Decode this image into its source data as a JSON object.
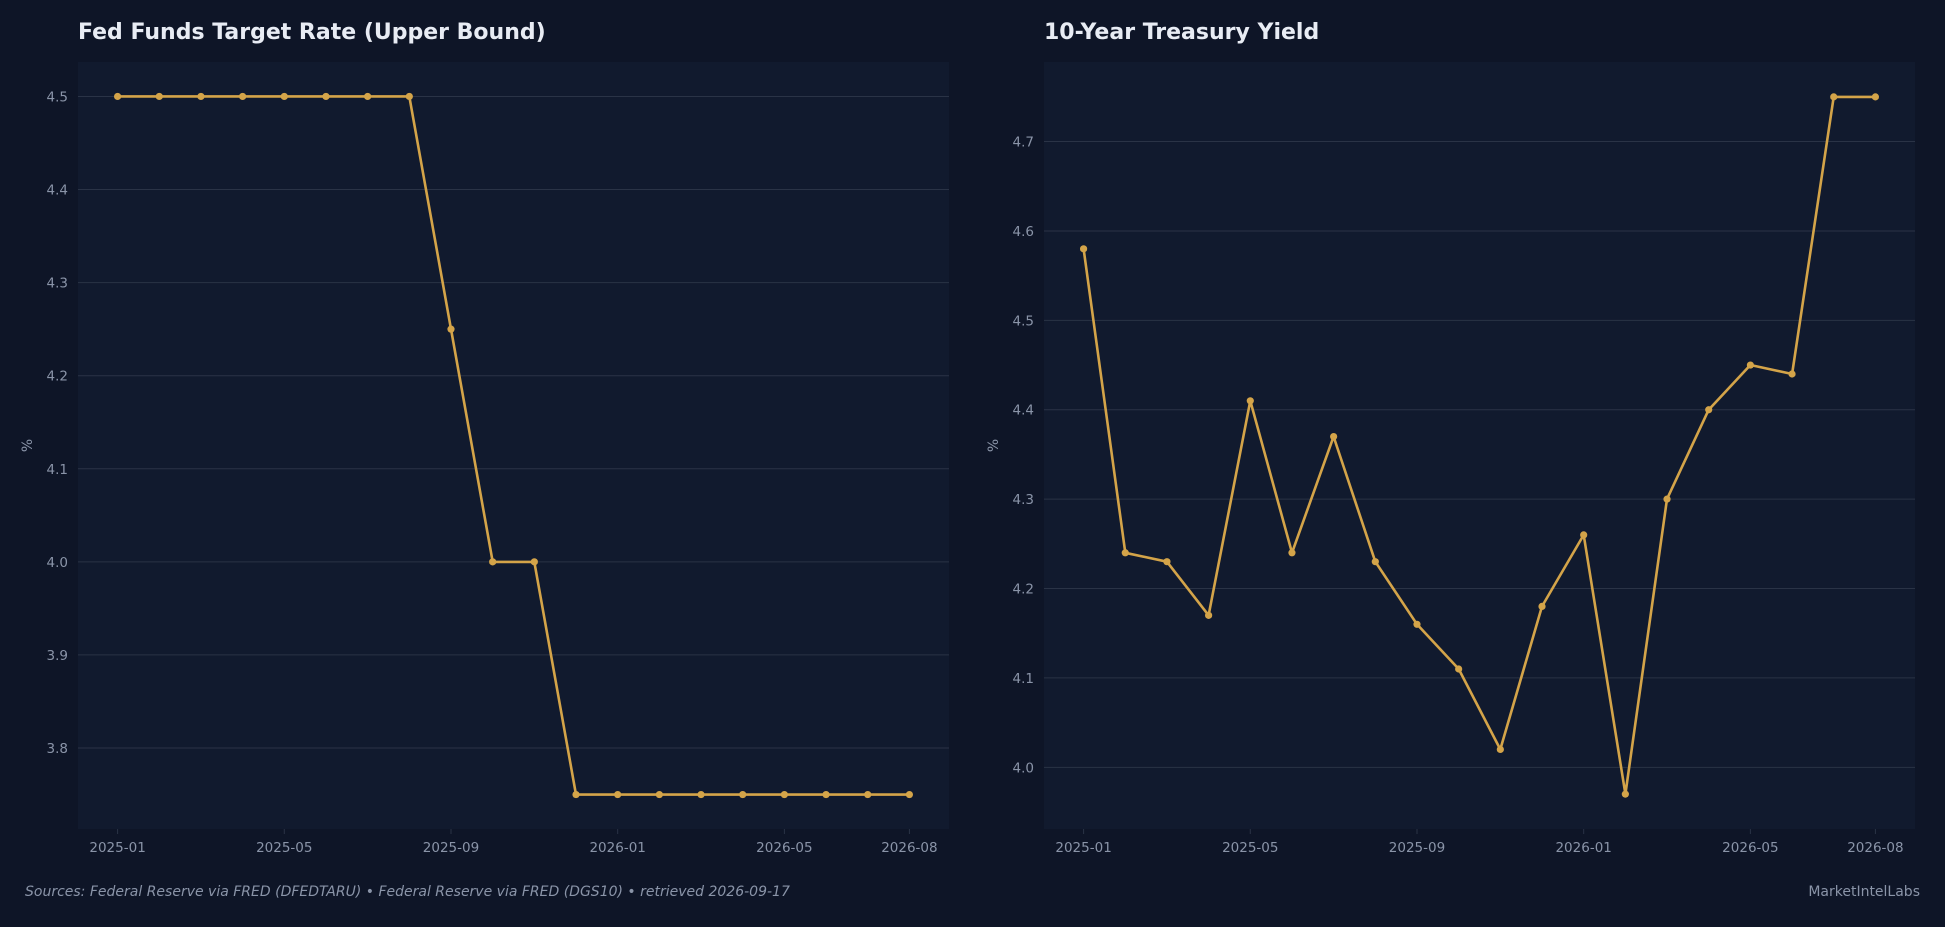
{
  "chart_data": [
    {
      "type": "line",
      "title": "Fed Funds Target Rate (Upper Bound)",
      "ylabel": "%",
      "xlabel": "",
      "ylim": [
        3.713,
        4.537
      ],
      "y_ticks": [
        3.8,
        3.9,
        4.0,
        4.1,
        4.2,
        4.3,
        4.4,
        4.5
      ],
      "x_ticks": [
        "2025-01",
        "2025-05",
        "2025-09",
        "2026-01",
        "2026-05",
        "2026-08"
      ],
      "grid": true,
      "color": "#d4a449",
      "x": [
        "2025-01",
        "2025-02",
        "2025-03",
        "2025-04",
        "2025-05",
        "2025-06",
        "2025-07",
        "2025-08",
        "2025-09",
        "2025-10",
        "2025-11",
        "2025-12",
        "2026-01",
        "2026-02",
        "2026-03",
        "2026-04",
        "2026-05",
        "2026-06",
        "2026-07",
        "2026-08"
      ],
      "values": [
        4.5,
        4.5,
        4.5,
        4.5,
        4.5,
        4.5,
        4.5,
        4.5,
        4.25,
        4.0,
        4.0,
        3.75,
        3.75,
        3.75,
        3.75,
        3.75,
        3.75,
        3.75,
        3.75,
        3.75
      ]
    },
    {
      "type": "line",
      "title": "10-Year Treasury Yield",
      "ylabel": "%",
      "xlabel": "",
      "ylim": [
        3.931,
        4.789
      ],
      "y_ticks": [
        4.0,
        4.1,
        4.2,
        4.3,
        4.4,
        4.5,
        4.6,
        4.7
      ],
      "x_ticks": [
        "2025-01",
        "2025-05",
        "2025-09",
        "2026-01",
        "2026-05",
        "2026-08"
      ],
      "grid": true,
      "color": "#d4a449",
      "x": [
        "2025-01",
        "2025-02",
        "2025-03",
        "2025-04",
        "2025-05",
        "2025-06",
        "2025-07",
        "2025-08",
        "2025-09",
        "2025-10",
        "2025-11",
        "2025-12",
        "2026-01",
        "2026-02",
        "2026-03",
        "2026-04",
        "2026-05",
        "2026-06",
        "2026-07",
        "2026-08"
      ],
      "values": [
        4.58,
        4.24,
        4.23,
        4.17,
        4.41,
        4.24,
        4.37,
        4.23,
        4.16,
        4.11,
        4.02,
        4.18,
        4.26,
        3.97,
        4.3,
        4.4,
        4.45,
        4.44,
        4.75,
        4.75
      ]
    }
  ],
  "footer": {
    "source": "Sources: Federal Reserve via FRED (DFEDTARU)  •  Federal Reserve via FRED (DGS10)  •  retrieved 2026-09-17",
    "brand": "MarketIntelLabs"
  },
  "colors": {
    "background": "#0e1527",
    "plot_background": "#111a2e",
    "grid": "#2a3346",
    "line": "#d4a449",
    "text": "#e8ecf4",
    "muted_text": "#8a94a8"
  }
}
